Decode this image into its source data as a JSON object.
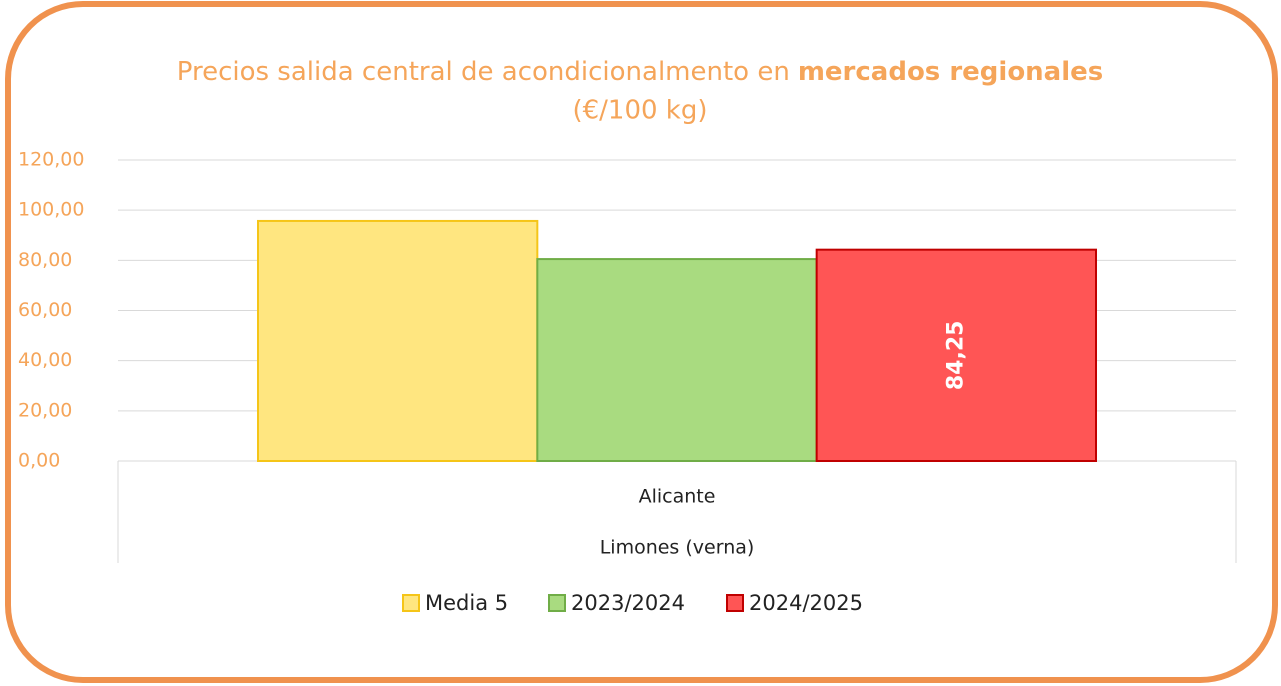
{
  "chart_data": {
    "type": "bar",
    "title_parts": [
      "Precios salida central de acondicionalmento en",
      "mercados regionales"
    ],
    "subtitle": "(€/100 kg)",
    "categories": [
      "Alicante"
    ],
    "group_label": "Limones (verna)",
    "series": [
      {
        "name": "Media 5",
        "color": "#ffe680",
        "border": "#f5c518",
        "values": [
          95.7
        ]
      },
      {
        "name": "2023/2024",
        "color": "#a9db80",
        "border": "#70ad47",
        "values": [
          80.5
        ]
      },
      {
        "name": "2024/2025",
        "color": "#ff5555",
        "border": "#c00000",
        "values": [
          84.25
        ],
        "value_labels": [
          "84,25"
        ]
      }
    ],
    "ylim": [
      0,
      120
    ],
    "yticks": [
      {
        "value": 0,
        "label": "0,00"
      },
      {
        "value": 20,
        "label": "20,00"
      },
      {
        "value": 40,
        "label": "40,00"
      },
      {
        "value": 60,
        "label": "60,00"
      },
      {
        "value": 80,
        "label": "80,00"
      },
      {
        "value": 100,
        "label": "100,00"
      },
      {
        "value": 120,
        "label": "120,00"
      }
    ],
    "grid": true
  }
}
